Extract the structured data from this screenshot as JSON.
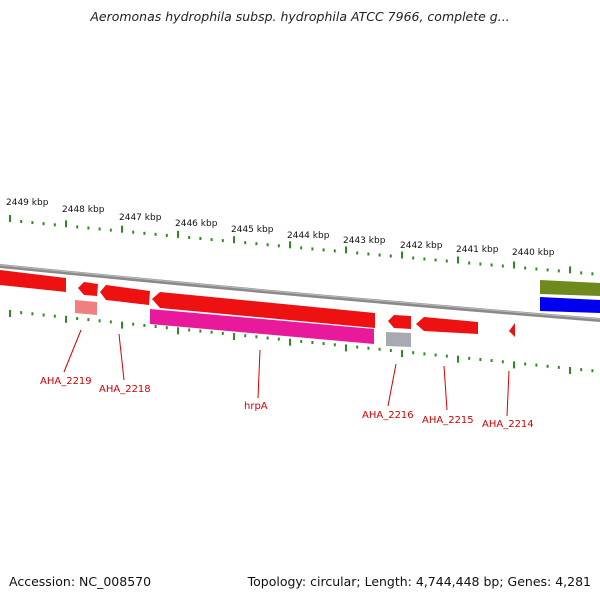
{
  "title": "Aeromonas hydrophila subsp. hydrophila ATCC 7966, complete g...",
  "accession_text": "Accession: NC_008570",
  "summary_text": "Topology: circular; Length: 4,744,448 bp; Genes: 4,281",
  "colors": {
    "backbone": "#8a8a8a",
    "tick": "#2e8b1e",
    "gene_red": "#ee1111",
    "gene_pink": "#e8199a",
    "gene_gray": "#a9a9b2",
    "gene_salmon": "#f07f7f",
    "gene_olive": "#6e8a1e",
    "gene_blue": "#0000ee",
    "label": "#d40000"
  },
  "kbp_labels": [
    "2449 kbp",
    "2448 kbp",
    "2447 kbp",
    "2446 kbp",
    "2445 kbp",
    "2444 kbp",
    "2443 kbp",
    "2442 kbp",
    "2441 kbp",
    "2440 kbp"
  ],
  "gene_labels": [
    "AHA_2219",
    "AHA_2218",
    "hrpA",
    "AHA_2216",
    "AHA_2215",
    "AHA_2214"
  ]
}
